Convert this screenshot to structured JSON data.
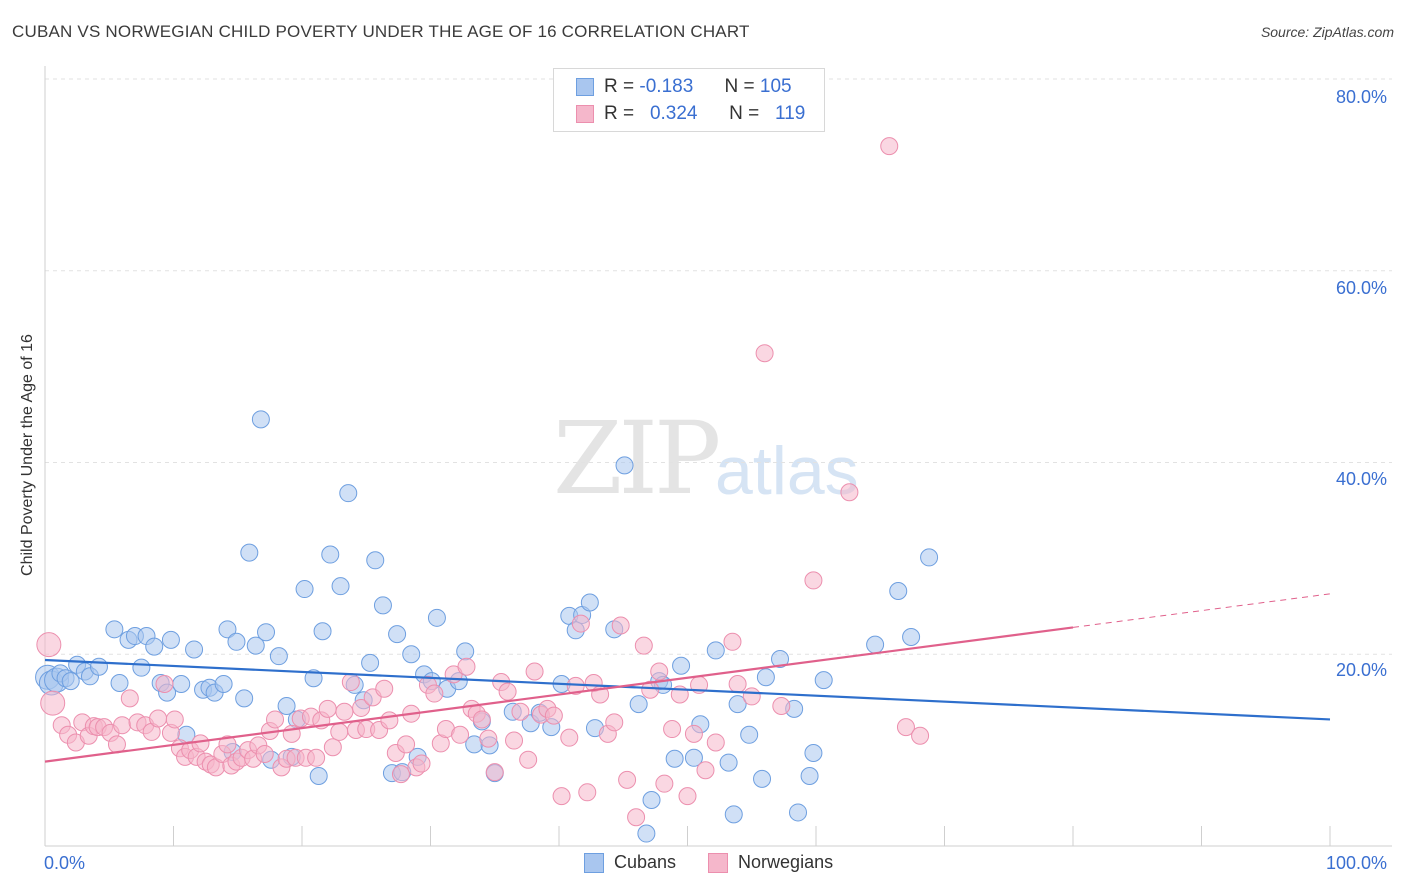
{
  "title": "CUBAN VS NORWEGIAN CHILD POVERTY UNDER THE AGE OF 16 CORRELATION CHART",
  "source": "Source: ZipAtlas.com",
  "watermark": {
    "part1": "ZIP",
    "part2": "atlas"
  },
  "legend": {
    "rows": [
      {
        "r_label": "R =",
        "r_value": "-0.183",
        "n_label": "N =",
        "n_value": "105"
      },
      {
        "r_label": "R =",
        "r_value": "0.324",
        "n_label": "N =",
        "n_value": "119"
      }
    ]
  },
  "bottom_legend": {
    "cubans": "Cubans",
    "norwegians": "Norwegians"
  },
  "colors": {
    "cuban_fill": "#a9c6ef",
    "cuban_stroke": "#6e9fe0",
    "cuban_line": "#2e6fcc",
    "norw_fill": "#f5b7cb",
    "norw_stroke": "#ec8fae",
    "norw_line": "#e0608b",
    "grid": "#e2e2e2",
    "tick_label": "#3a6fd1"
  },
  "chart_data": {
    "type": "scatter",
    "title": "CUBAN VS NORWEGIAN CHILD POVERTY UNDER THE AGE OF 16 CORRELATION CHART",
    "xlabel": "",
    "ylabel": "Child Poverty Under the Age of 16",
    "xlim": [
      0,
      100
    ],
    "ylim": [
      0,
      80
    ],
    "x_tick_labels": [
      "0.0%",
      "100.0%"
    ],
    "y_ticks": [
      20,
      40,
      60,
      80
    ],
    "y_tick_labels": [
      "20.0%",
      "40.0%",
      "60.0%",
      "80.0%"
    ],
    "grid": true,
    "legend_position": "top-center",
    "series": [
      {
        "name": "Cubans",
        "r": -0.183,
        "n": 105,
        "trend": {
          "x": [
            0,
            100
          ],
          "y": [
            19.4,
            13.2
          ]
        },
        "points": [
          [
            0.2,
            17.6
          ],
          [
            0.5,
            17.0
          ],
          [
            0.9,
            17.3
          ],
          [
            1.2,
            18.0
          ],
          [
            1.6,
            17.5
          ],
          [
            2.0,
            17.2
          ],
          [
            2.5,
            18.9
          ],
          [
            3.1,
            18.2
          ],
          [
            3.5,
            17.7
          ],
          [
            4.2,
            18.7
          ],
          [
            5.4,
            22.6
          ],
          [
            5.8,
            17.0
          ],
          [
            6.5,
            21.5
          ],
          [
            7.0,
            21.9
          ],
          [
            7.5,
            18.6
          ],
          [
            7.9,
            21.9
          ],
          [
            8.5,
            20.8
          ],
          [
            9.0,
            17.0
          ],
          [
            9.5,
            16.0
          ],
          [
            9.8,
            21.5
          ],
          [
            10.6,
            16.9
          ],
          [
            11.0,
            11.6
          ],
          [
            11.6,
            20.5
          ],
          [
            12.3,
            16.3
          ],
          [
            12.8,
            16.5
          ],
          [
            13.2,
            16.0
          ],
          [
            13.9,
            16.9
          ],
          [
            14.2,
            22.6
          ],
          [
            14.6,
            9.8
          ],
          [
            14.9,
            21.3
          ],
          [
            15.5,
            15.4
          ],
          [
            15.9,
            30.6
          ],
          [
            16.4,
            20.9
          ],
          [
            16.8,
            44.5
          ],
          [
            17.2,
            22.3
          ],
          [
            17.6,
            9.0
          ],
          [
            18.2,
            19.8
          ],
          [
            18.8,
            14.6
          ],
          [
            19.2,
            9.3
          ],
          [
            19.6,
            13.2
          ],
          [
            20.2,
            26.8
          ],
          [
            20.9,
            17.5
          ],
          [
            21.3,
            7.3
          ],
          [
            21.6,
            22.4
          ],
          [
            22.2,
            30.4
          ],
          [
            23.0,
            27.1
          ],
          [
            23.6,
            36.8
          ],
          [
            24.1,
            16.8
          ],
          [
            24.8,
            15.2
          ],
          [
            25.3,
            19.1
          ],
          [
            25.7,
            29.8
          ],
          [
            26.3,
            25.1
          ],
          [
            27.0,
            7.6
          ],
          [
            27.4,
            22.1
          ],
          [
            27.8,
            7.7
          ],
          [
            28.5,
            20.0
          ],
          [
            29.0,
            9.3
          ],
          [
            29.5,
            17.9
          ],
          [
            30.1,
            17.2
          ],
          [
            30.5,
            23.8
          ],
          [
            31.3,
            16.4
          ],
          [
            32.2,
            17.2
          ],
          [
            32.7,
            20.3
          ],
          [
            33.4,
            10.6
          ],
          [
            34.0,
            13.0
          ],
          [
            34.6,
            10.5
          ],
          [
            35.0,
            7.6
          ],
          [
            36.4,
            14.0
          ],
          [
            37.8,
            12.8
          ],
          [
            38.5,
            13.9
          ],
          [
            39.4,
            12.4
          ],
          [
            40.2,
            16.9
          ],
          [
            40.8,
            24.0
          ],
          [
            41.3,
            22.5
          ],
          [
            41.8,
            24.1
          ],
          [
            42.4,
            25.4
          ],
          [
            42.8,
            12.3
          ],
          [
            44.3,
            22.6
          ],
          [
            45.1,
            39.7
          ],
          [
            46.2,
            14.8
          ],
          [
            46.8,
            1.3
          ],
          [
            47.2,
            4.8
          ],
          [
            47.8,
            17.2
          ],
          [
            48.1,
            16.8
          ],
          [
            49.0,
            9.1
          ],
          [
            49.5,
            18.8
          ],
          [
            50.5,
            9.2
          ],
          [
            51.0,
            12.7
          ],
          [
            52.2,
            20.4
          ],
          [
            53.2,
            8.7
          ],
          [
            53.6,
            3.3
          ],
          [
            53.9,
            14.8
          ],
          [
            54.8,
            11.6
          ],
          [
            55.8,
            7.0
          ],
          [
            56.1,
            17.6
          ],
          [
            57.2,
            19.5
          ],
          [
            58.3,
            14.3
          ],
          [
            58.6,
            3.5
          ],
          [
            59.5,
            7.3
          ],
          [
            59.8,
            9.7
          ],
          [
            60.6,
            17.3
          ],
          [
            64.6,
            21.0
          ],
          [
            66.4,
            26.6
          ],
          [
            67.4,
            21.8
          ],
          [
            68.8,
            30.1
          ]
        ]
      },
      {
        "name": "Norwegians",
        "r": 0.324,
        "n": 119,
        "trend": {
          "x": [
            0,
            80
          ],
          "y": [
            8.8,
            22.8
          ]
        },
        "trend_dashed": {
          "x": [
            80,
            100
          ],
          "y": [
            22.8,
            26.3
          ]
        },
        "points": [
          [
            0.3,
            21.0
          ],
          [
            0.6,
            14.9
          ],
          [
            1.3,
            12.6
          ],
          [
            1.8,
            11.6
          ],
          [
            2.4,
            10.8
          ],
          [
            2.9,
            12.9
          ],
          [
            3.4,
            11.5
          ],
          [
            3.8,
            12.5
          ],
          [
            4.1,
            12.4
          ],
          [
            4.6,
            12.4
          ],
          [
            5.1,
            11.8
          ],
          [
            5.6,
            10.6
          ],
          [
            6.0,
            12.6
          ],
          [
            6.6,
            15.4
          ],
          [
            7.2,
            12.9
          ],
          [
            7.8,
            12.6
          ],
          [
            8.3,
            11.9
          ],
          [
            8.8,
            13.3
          ],
          [
            9.3,
            16.9
          ],
          [
            9.8,
            11.8
          ],
          [
            10.1,
            13.2
          ],
          [
            10.5,
            10.2
          ],
          [
            10.9,
            9.3
          ],
          [
            11.3,
            10.0
          ],
          [
            11.8,
            9.3
          ],
          [
            12.1,
            10.7
          ],
          [
            12.5,
            8.8
          ],
          [
            12.9,
            8.5
          ],
          [
            13.3,
            8.2
          ],
          [
            13.8,
            9.6
          ],
          [
            14.2,
            10.6
          ],
          [
            14.5,
            8.4
          ],
          [
            14.9,
            8.8
          ],
          [
            15.3,
            9.2
          ],
          [
            15.8,
            10.0
          ],
          [
            16.2,
            9.1
          ],
          [
            16.6,
            10.5
          ],
          [
            17.1,
            9.6
          ],
          [
            17.5,
            12.0
          ],
          [
            17.9,
            13.2
          ],
          [
            18.4,
            8.2
          ],
          [
            18.8,
            9.1
          ],
          [
            19.2,
            11.7
          ],
          [
            19.5,
            9.2
          ],
          [
            19.9,
            13.3
          ],
          [
            20.3,
            9.2
          ],
          [
            20.7,
            13.5
          ],
          [
            21.1,
            9.2
          ],
          [
            21.5,
            13.1
          ],
          [
            22.0,
            14.3
          ],
          [
            22.4,
            10.3
          ],
          [
            22.9,
            11.9
          ],
          [
            23.3,
            14.0
          ],
          [
            23.8,
            17.1
          ],
          [
            24.2,
            12.1
          ],
          [
            24.6,
            14.4
          ],
          [
            25.0,
            12.2
          ],
          [
            25.5,
            15.5
          ],
          [
            26.0,
            12.1
          ],
          [
            26.4,
            16.4
          ],
          [
            26.8,
            13.1
          ],
          [
            27.3,
            9.7
          ],
          [
            27.7,
            7.5
          ],
          [
            28.1,
            10.6
          ],
          [
            28.5,
            13.8
          ],
          [
            28.9,
            8.2
          ],
          [
            29.3,
            8.6
          ],
          [
            29.8,
            16.8
          ],
          [
            30.3,
            15.9
          ],
          [
            30.8,
            10.7
          ],
          [
            31.2,
            12.2
          ],
          [
            31.8,
            17.9
          ],
          [
            32.3,
            11.6
          ],
          [
            32.8,
            18.7
          ],
          [
            33.2,
            14.3
          ],
          [
            33.6,
            13.8
          ],
          [
            34.0,
            13.2
          ],
          [
            34.5,
            11.2
          ],
          [
            35.0,
            7.7
          ],
          [
            35.5,
            17.1
          ],
          [
            36.0,
            16.1
          ],
          [
            36.5,
            11.0
          ],
          [
            37.0,
            14.0
          ],
          [
            37.6,
            9.0
          ],
          [
            38.1,
            18.2
          ],
          [
            38.6,
            13.7
          ],
          [
            39.1,
            14.3
          ],
          [
            39.6,
            13.6
          ],
          [
            40.2,
            5.2
          ],
          [
            40.8,
            11.3
          ],
          [
            41.3,
            16.7
          ],
          [
            41.7,
            23.2
          ],
          [
            42.2,
            5.6
          ],
          [
            42.7,
            17.0
          ],
          [
            43.2,
            15.8
          ],
          [
            43.8,
            11.7
          ],
          [
            44.3,
            12.9
          ],
          [
            44.8,
            23.0
          ],
          [
            45.3,
            6.9
          ],
          [
            46.0,
            3.0
          ],
          [
            46.6,
            20.9
          ],
          [
            47.1,
            16.3
          ],
          [
            47.8,
            18.2
          ],
          [
            48.2,
            6.5
          ],
          [
            48.8,
            12.2
          ],
          [
            49.4,
            15.8
          ],
          [
            50.0,
            5.2
          ],
          [
            50.5,
            11.7
          ],
          [
            50.9,
            16.8
          ],
          [
            51.4,
            7.9
          ],
          [
            52.2,
            10.8
          ],
          [
            53.5,
            21.3
          ],
          [
            53.9,
            16.9
          ],
          [
            55.0,
            15.6
          ],
          [
            56.0,
            51.4
          ],
          [
            57.3,
            14.6
          ],
          [
            59.8,
            27.7
          ],
          [
            62.6,
            36.9
          ],
          [
            65.7,
            73.0
          ],
          [
            67.0,
            12.4
          ],
          [
            68.1,
            11.5
          ]
        ]
      }
    ]
  }
}
